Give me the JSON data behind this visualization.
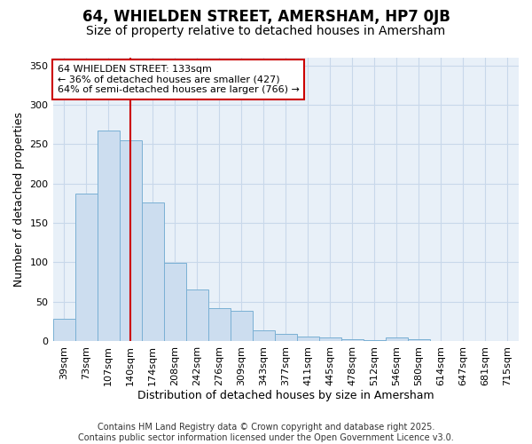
{
  "title": "64, WHIELDEN STREET, AMERSHAM, HP7 0JB",
  "subtitle": "Size of property relative to detached houses in Amersham",
  "xlabel": "Distribution of detached houses by size in Amersham",
  "ylabel": "Number of detached properties",
  "categories": [
    "39sqm",
    "73sqm",
    "107sqm",
    "140sqm",
    "174sqm",
    "208sqm",
    "242sqm",
    "276sqm",
    "309sqm",
    "343sqm",
    "377sqm",
    "411sqm",
    "445sqm",
    "478sqm",
    "512sqm",
    "546sqm",
    "580sqm",
    "614sqm",
    "647sqm",
    "681sqm",
    "715sqm"
  ],
  "values": [
    28,
    187,
    268,
    255,
    176,
    99,
    65,
    42,
    38,
    13,
    9,
    6,
    4,
    2,
    1,
    4,
    2,
    0,
    0,
    0,
    0
  ],
  "bar_color": "#ccddef",
  "bar_edge_color": "#7ab0d4",
  "vline_x_index": 3,
  "vline_color": "#cc0000",
  "annotation_text": "64 WHIELDEN STREET: 133sqm\n← 36% of detached houses are smaller (427)\n64% of semi-detached houses are larger (766) →",
  "annotation_box_facecolor": "#ffffff",
  "annotation_box_edgecolor": "#cc0000",
  "ylim": [
    0,
    360
  ],
  "yticks": [
    0,
    50,
    100,
    150,
    200,
    250,
    300,
    350
  ],
  "grid_color": "#c8d8ea",
  "background_color": "#ffffff",
  "plot_bg_color": "#e8f0f8",
  "footer_line1": "Contains HM Land Registry data © Crown copyright and database right 2025.",
  "footer_line2": "Contains public sector information licensed under the Open Government Licence v3.0.",
  "title_fontsize": 12,
  "subtitle_fontsize": 10,
  "tick_fontsize": 8,
  "label_fontsize": 9,
  "annotation_fontsize": 8,
  "footer_fontsize": 7
}
